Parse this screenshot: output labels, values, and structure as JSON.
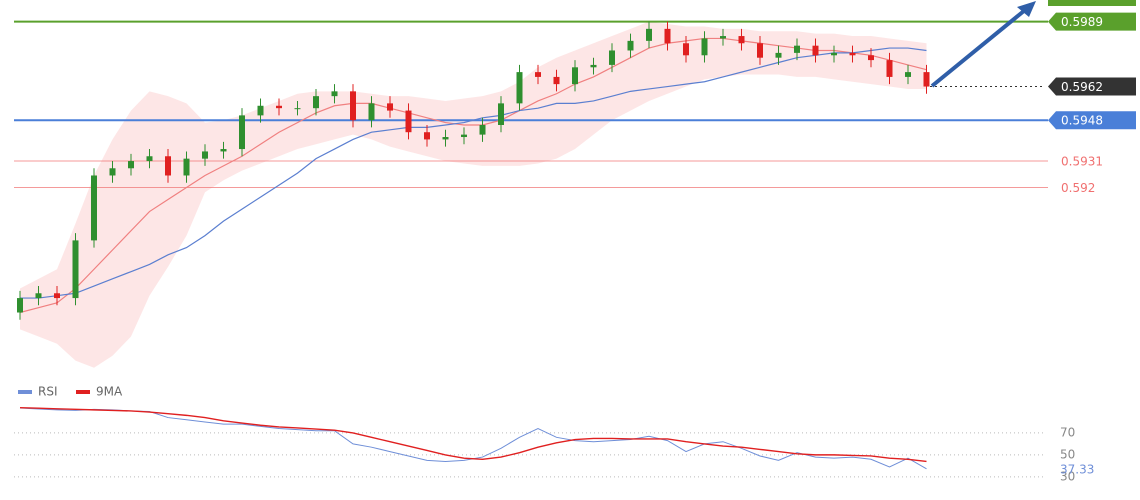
{
  "chart_data": [
    {
      "type": "candlestick",
      "ylim": [
        0.5842,
        0.5998
      ],
      "up_color": "#2f8f2f",
      "down_color": "#e02020",
      "open": [
        0.5868,
        0.5874,
        0.5876,
        0.5874,
        0.5898,
        0.5925,
        0.5928,
        0.5931,
        0.5933,
        0.5925,
        0.5932,
        0.5935,
        0.5936,
        0.595,
        0.5954,
        0.5953,
        0.5953,
        0.5958,
        0.596,
        0.5948,
        0.5955,
        0.5952,
        0.5943,
        0.594,
        0.5941,
        0.5942,
        0.5946,
        0.5955,
        0.5968,
        0.5966,
        0.5963,
        0.597,
        0.5971,
        0.5977,
        0.5981,
        0.5986,
        0.598,
        0.5975,
        0.5982,
        0.5983,
        0.598,
        0.5974,
        0.5976,
        0.5979,
        0.5975,
        0.5976,
        0.5975,
        0.5973,
        0.5966,
        0.5968
      ],
      "high": [
        0.5877,
        0.5879,
        0.5879,
        0.5901,
        0.5928,
        0.5931,
        0.5934,
        0.5936,
        0.5936,
        0.5935,
        0.5938,
        0.5939,
        0.5953,
        0.5957,
        0.5957,
        0.5956,
        0.5961,
        0.5963,
        0.5963,
        0.5958,
        0.5958,
        0.5955,
        0.5946,
        0.5944,
        0.5945,
        0.5949,
        0.5958,
        0.5971,
        0.5971,
        0.5969,
        0.5973,
        0.5974,
        0.598,
        0.5984,
        0.5989,
        0.5989,
        0.5983,
        0.5985,
        0.5986,
        0.5986,
        0.5983,
        0.5979,
        0.5982,
        0.5982,
        0.5979,
        0.5979,
        0.5978,
        0.5976,
        0.5971,
        0.5971
      ],
      "low": [
        0.5865,
        0.5871,
        0.5871,
        0.5871,
        0.5895,
        0.5922,
        0.5925,
        0.5928,
        0.5922,
        0.5922,
        0.5929,
        0.5932,
        0.5933,
        0.5947,
        0.595,
        0.595,
        0.595,
        0.5955,
        0.5945,
        0.5945,
        0.5949,
        0.594,
        0.5937,
        0.5937,
        0.5938,
        0.5939,
        0.5943,
        0.5952,
        0.5963,
        0.596,
        0.596,
        0.5967,
        0.5968,
        0.5974,
        0.5978,
        0.5977,
        0.5972,
        0.5972,
        0.5979,
        0.5977,
        0.5971,
        0.5971,
        0.5973,
        0.5972,
        0.5972,
        0.5972,
        0.597,
        0.5963,
        0.5963,
        0.5959
      ],
      "close": [
        0.5874,
        0.5876,
        0.5874,
        0.5898,
        0.5925,
        0.5928,
        0.5931,
        0.5933,
        0.5925,
        0.5932,
        0.5935,
        0.5936,
        0.595,
        0.5954,
        0.5953,
        0.5953,
        0.5958,
        0.596,
        0.5948,
        0.5955,
        0.5952,
        0.5943,
        0.594,
        0.5941,
        0.5942,
        0.5946,
        0.5955,
        0.5968,
        0.5966,
        0.5963,
        0.597,
        0.5971,
        0.5977,
        0.5981,
        0.5986,
        0.598,
        0.5975,
        0.5982,
        0.5983,
        0.598,
        0.5974,
        0.5976,
        0.5979,
        0.5975,
        0.5976,
        0.5975,
        0.5973,
        0.5966,
        0.5968,
        0.5962
      ],
      "band": {
        "color": "#fde0e0",
        "upper": [
          0.5878,
          0.5882,
          0.5886,
          0.5905,
          0.5925,
          0.594,
          0.5952,
          0.596,
          0.5958,
          0.5955,
          0.5947,
          0.5948,
          0.595,
          0.5953,
          0.5956,
          0.5959,
          0.596,
          0.596,
          0.596,
          0.5959,
          0.5958,
          0.5958,
          0.5957,
          0.5956,
          0.5957,
          0.5958,
          0.596,
          0.5964,
          0.597,
          0.5974,
          0.5977,
          0.598,
          0.5983,
          0.5986,
          0.5989,
          0.5988,
          0.5987,
          0.5987,
          0.5986,
          0.5986,
          0.5985,
          0.5985,
          0.5985,
          0.5984,
          0.5984,
          0.5983,
          0.5983,
          0.5982,
          0.5981,
          0.598
        ],
        "lower": [
          0.5861,
          0.5858,
          0.5855,
          0.5848,
          0.5845,
          0.585,
          0.5858,
          0.5875,
          0.5887,
          0.59,
          0.5918,
          0.5923,
          0.5927,
          0.593,
          0.5933,
          0.5936,
          0.5938,
          0.594,
          0.5942,
          0.594,
          0.5937,
          0.5935,
          0.5933,
          0.5931,
          0.593,
          0.5929,
          0.5929,
          0.5929,
          0.593,
          0.5932,
          0.5936,
          0.5942,
          0.5948,
          0.5952,
          0.5956,
          0.5959,
          0.5962,
          0.5965,
          0.5966,
          0.5967,
          0.5967,
          0.5967,
          0.5966,
          0.5966,
          0.5965,
          0.5964,
          0.5963,
          0.5962,
          0.5961,
          0.5961
        ]
      },
      "lines": [
        {
          "color": "#f08080",
          "values": [
            0.5868,
            0.587,
            0.5872,
            0.5878,
            0.5886,
            0.5894,
            0.5902,
            0.591,
            0.5915,
            0.592,
            0.5925,
            0.5929,
            0.5933,
            0.5938,
            0.5943,
            0.5947,
            0.5951,
            0.5954,
            0.5955,
            0.5955,
            0.5953,
            0.5951,
            0.5949,
            0.5947,
            0.5946,
            0.5946,
            0.5948,
            0.5952,
            0.5956,
            0.5959,
            0.5963,
            0.5966,
            0.597,
            0.5974,
            0.5978,
            0.598,
            0.5981,
            0.5982,
            0.5982,
            0.5981,
            0.598,
            0.5979,
            0.5978,
            0.5977,
            0.5977,
            0.5976,
            0.5975,
            0.5973,
            0.5971,
            0.5969
          ]
        },
        {
          "color": "#5b7fd0",
          "values": [
            0.5874,
            0.5874,
            0.5875,
            0.5876,
            0.5879,
            0.5882,
            0.5885,
            0.5888,
            0.5892,
            0.5895,
            0.59,
            0.5906,
            0.5911,
            0.5916,
            0.5921,
            0.5926,
            0.5932,
            0.5936,
            0.594,
            0.5943,
            0.5944,
            0.5945,
            0.5945,
            0.5946,
            0.5947,
            0.5949,
            0.595,
            0.5952,
            0.5953,
            0.5955,
            0.5955,
            0.5956,
            0.5958,
            0.596,
            0.5961,
            0.5962,
            0.5963,
            0.5964,
            0.5966,
            0.5968,
            0.597,
            0.5972,
            0.5974,
            0.5975,
            0.5976,
            0.5976,
            0.5977,
            0.5978,
            0.5978,
            0.5977
          ]
        }
      ],
      "levels": [
        {
          "value": 0.5989,
          "color": "#5aa02c",
          "style": "box",
          "line": "solid"
        },
        {
          "value": 0.5962,
          "color": "#333333",
          "style": "box",
          "line": "dotted"
        },
        {
          "value": 0.5948,
          "color": "#4a7fd8",
          "style": "box",
          "line": "solid"
        },
        {
          "value": 0.5931,
          "color": "#f07070",
          "style": "text",
          "line": "solid"
        },
        {
          "value": 0.592,
          "color": "#f07070",
          "style": "text",
          "line": "solid"
        }
      ]
    },
    {
      "type": "line",
      "ylim": [
        18,
        100
      ],
      "yticks": [
        70,
        50,
        30
      ],
      "grid": true,
      "series": [
        {
          "name": "RSI",
          "color": "#6f8fd8",
          "values": [
            92.7,
            91.8,
            91.0,
            90.5,
            91.5,
            91.0,
            90.0,
            89.5,
            84.0,
            82.0,
            80.0,
            78.0,
            78.0,
            76.0,
            74.0,
            73.0,
            72.0,
            72.0,
            60.0,
            57.0,
            53.0,
            49.0,
            45.0,
            44.0,
            45.0,
            48.0,
            56.0,
            66.0,
            74.0,
            66.0,
            63.0,
            62.0,
            63.0,
            64.0,
            67.0,
            63.0,
            53.0,
            60.0,
            62.0,
            56.0,
            49.0,
            45.0,
            52.0,
            48.0,
            47.0,
            48.0,
            46.0,
            39.0,
            47.0,
            37.33
          ]
        },
        {
          "name": "9MA",
          "color": "#e02020",
          "values": [
            93.0,
            92.5,
            92.0,
            91.5,
            91.0,
            90.5,
            90.0,
            89.0,
            87.5,
            86.0,
            84.0,
            81.0,
            79.0,
            77.0,
            75.5,
            74.5,
            73.5,
            72.5,
            70.0,
            66.0,
            62.0,
            58.0,
            54.0,
            50.0,
            47.0,
            46.0,
            48.0,
            52.0,
            57.0,
            61.0,
            64.0,
            65.0,
            65.0,
            64.5,
            64.5,
            64.5,
            62.0,
            60.0,
            58.0,
            57.0,
            55.0,
            53.0,
            51.0,
            50.0,
            50.0,
            49.5,
            49.0,
            47.0,
            46.0,
            44.0
          ]
        }
      ]
    }
  ]
}
